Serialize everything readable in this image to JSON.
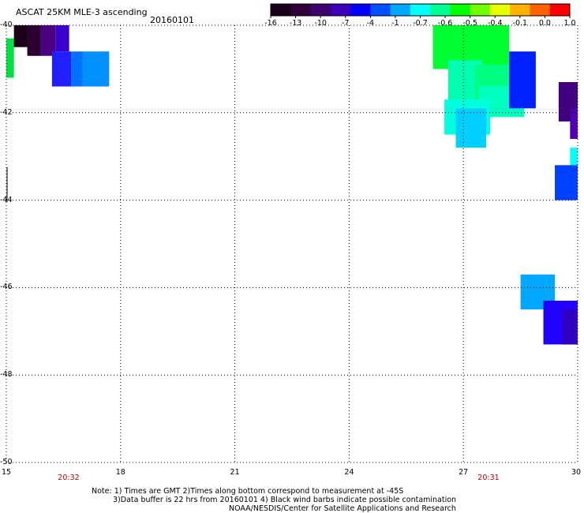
{
  "header": {
    "title": "ASCAT 25KM MLE-3 ascending",
    "date": "20160101"
  },
  "colorbar": {
    "labels": [
      "-16",
      "-13",
      "-10",
      "-7",
      "-4",
      "-1",
      "-0.7",
      "-0.6",
      "-0.5",
      "-0.4",
      "-0.1",
      "0.0",
      "1.0"
    ],
    "colors": [
      "#1a001a",
      "#30003a",
      "#3f0070",
      "#3b00b8",
      "#0000ff",
      "#0050ff",
      "#00a8ff",
      "#00ffff",
      "#00ff90",
      "#00ff00",
      "#70ff00",
      "#e8ff00",
      "#ffb000",
      "#ff6000",
      "#ff0000"
    ]
  },
  "axes": {
    "lat_labels": [
      "-40",
      "-42",
      "-44",
      "-46",
      "-48",
      "-50"
    ],
    "lon_labels": [
      "15",
      "18",
      "21",
      "24",
      "27",
      "30"
    ],
    "time_labels": [
      "20:32",
      "20:31"
    ],
    "grid": "dotted"
  },
  "map_data": {
    "cells": [
      {
        "lon": 15.0,
        "lat": -40.3,
        "w": 0.2,
        "h": 0.9,
        "color": "#00e040"
      },
      {
        "lon": 15.2,
        "lat": -40.0,
        "w": 0.35,
        "h": 0.5,
        "color": "#1a0018"
      },
      {
        "lon": 15.55,
        "lat": -40.0,
        "w": 0.35,
        "h": 0.7,
        "color": "#2a0030"
      },
      {
        "lon": 15.9,
        "lat": -40.0,
        "w": 0.4,
        "h": 0.7,
        "color": "#4a0080"
      },
      {
        "lon": 16.3,
        "lat": -40.0,
        "w": 0.35,
        "h": 0.6,
        "color": "#3a00d0"
      },
      {
        "lon": 16.2,
        "lat": -40.6,
        "w": 0.5,
        "h": 0.8,
        "color": "#2020ff"
      },
      {
        "lon": 16.7,
        "lat": -40.6,
        "w": 0.3,
        "h": 0.8,
        "color": "#0070ff"
      },
      {
        "lon": 17.0,
        "lat": -40.6,
        "w": 0.7,
        "h": 0.8,
        "color": "#0090ff"
      },
      {
        "lon": 26.2,
        "lat": -40.0,
        "w": 2.0,
        "h": 1.0,
        "color": "#00ff30"
      },
      {
        "lon": 26.6,
        "lat": -40.8,
        "w": 0.9,
        "h": 1.5,
        "color": "#00ffb0"
      },
      {
        "lon": 27.3,
        "lat": -40.9,
        "w": 1.1,
        "h": 1.1,
        "color": "#00ff80"
      },
      {
        "lon": 27.4,
        "lat": -41.4,
        "w": 1.2,
        "h": 0.7,
        "color": "#00ffc0"
      },
      {
        "lon": 26.5,
        "lat": -41.7,
        "w": 1.2,
        "h": 0.8,
        "color": "#00ffdd"
      },
      {
        "lon": 26.8,
        "lat": -41.9,
        "w": 0.8,
        "h": 0.9,
        "color": "#00d0ff"
      },
      {
        "lon": 28.2,
        "lat": -40.6,
        "w": 0.7,
        "h": 1.3,
        "color": "#0020ff"
      },
      {
        "lon": 29.5,
        "lat": -41.3,
        "w": 0.5,
        "h": 0.9,
        "color": "#400080"
      },
      {
        "lon": 29.8,
        "lat": -41.9,
        "w": 0.2,
        "h": 0.7,
        "color": "#5000b0"
      },
      {
        "lon": 29.8,
        "lat": -42.8,
        "w": 0.2,
        "h": 0.4,
        "color": "#00ffff"
      },
      {
        "lon": 29.4,
        "lat": -43.2,
        "w": 0.6,
        "h": 0.8,
        "color": "#0040ff"
      },
      {
        "lon": 28.5,
        "lat": -45.7,
        "w": 0.9,
        "h": 0.8,
        "color": "#00a8ff"
      },
      {
        "lon": 29.1,
        "lat": -46.3,
        "w": 0.9,
        "h": 1.0,
        "color": "#2000ff"
      },
      {
        "lon": 29.6,
        "lat": -46.5,
        "w": 0.4,
        "h": 0.8,
        "color": "#3000c0"
      }
    ]
  },
  "notes": {
    "line1": "Note: 1) Times are GMT 2)Times along bottom correspond to measurement at -45S",
    "line2": "3)Data buffer is 22 hrs from 20160101 4) Black wind barbs indicate possible contamination",
    "line3": "NOAA/NESDIS/Center for Satellite Applications and Research"
  }
}
